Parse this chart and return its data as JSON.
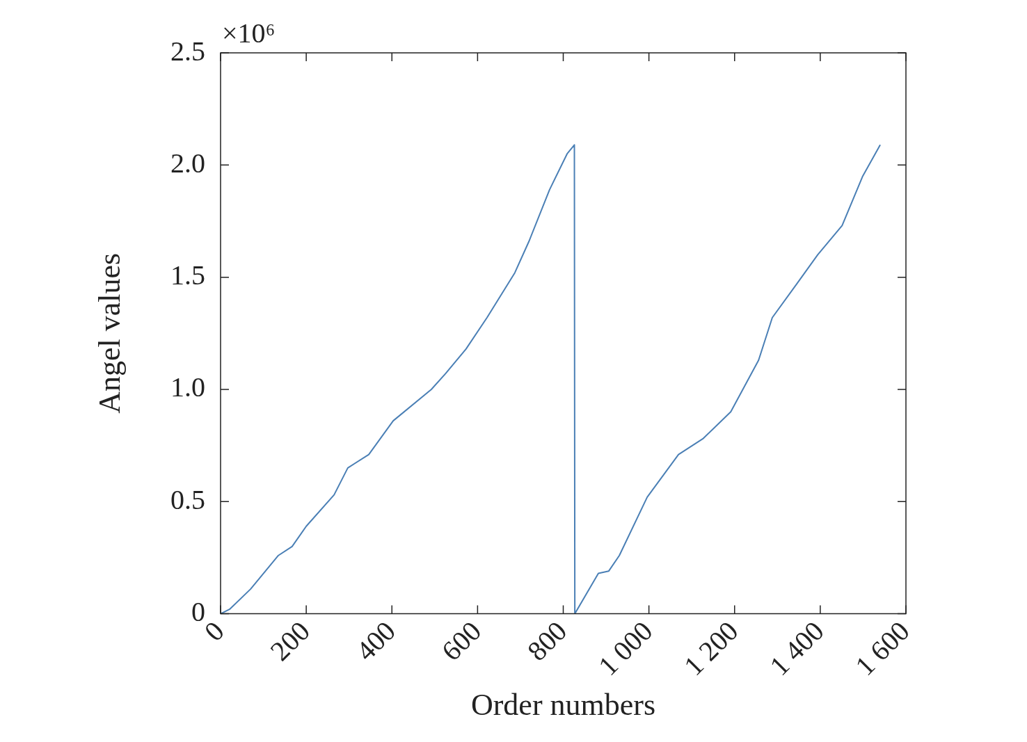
{
  "chart_data": {
    "type": "line",
    "xlabel": "Order numbers",
    "ylabel": "Angel values",
    "annotations": [
      "×10⁶"
    ],
    "xlim": [
      0,
      1600
    ],
    "xticks": [
      0,
      200,
      400,
      600,
      800,
      {
        "value": 1000,
        "label": "1 000"
      },
      {
        "value": 1200,
        "label": "1 200"
      },
      {
        "value": 1400,
        "label": "1 400"
      },
      {
        "value": 1600,
        "label": "1 600"
      }
    ],
    "ylim": [
      0,
      2.5
    ],
    "yticks": [
      0,
      0.5,
      {
        "value": 1,
        "label": "1.0"
      },
      1.5,
      {
        "value": 2,
        "label": "2.0"
      },
      2.5
    ],
    "grid": false,
    "legend": false,
    "marker": "none",
    "line_style": "solid",
    "series": [
      {
        "color": "#4a7fb5",
        "x": [
          0,
          21,
          70,
          135,
          167,
          200,
          265,
          297,
          346,
          403,
          492,
          525,
          573,
          622,
          687,
          720,
          768,
          809,
          826,
          827,
          882,
          906,
          931,
          996,
          1069,
          1126,
          1191,
          1256,
          1288,
          1345,
          1394,
          1451,
          1499,
          1540
        ],
        "values": [
          0,
          0.02,
          0.11,
          0.26,
          0.3,
          0.39,
          0.53,
          0.65,
          0.71,
          0.86,
          1.0,
          1.07,
          1.18,
          1.32,
          1.52,
          1.66,
          1.89,
          2.05,
          2.09,
          0,
          0.18,
          0.19,
          0.26,
          0.52,
          0.71,
          0.78,
          0.9,
          1.13,
          1.32,
          1.47,
          1.6,
          1.73,
          1.95,
          2.09
        ]
      }
    ]
  }
}
